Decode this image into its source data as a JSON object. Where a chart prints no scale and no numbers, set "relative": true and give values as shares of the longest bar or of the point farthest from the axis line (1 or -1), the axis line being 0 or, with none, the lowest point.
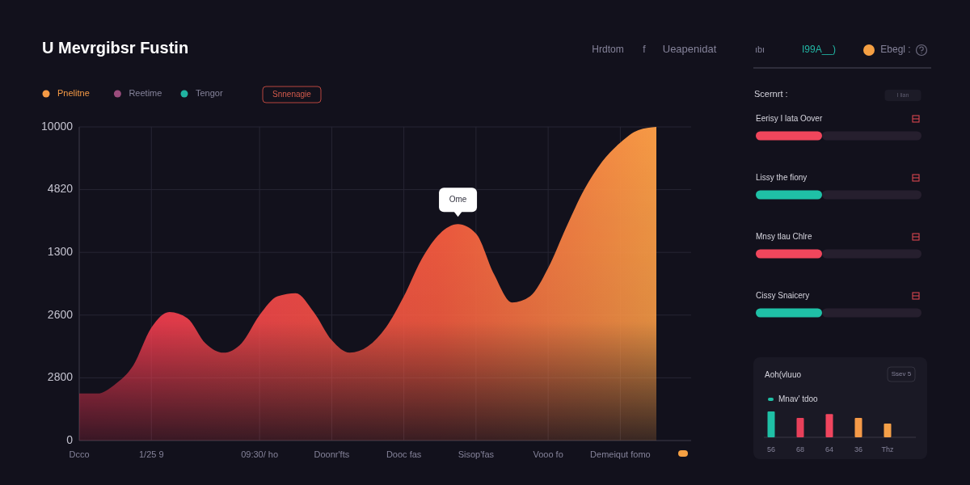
{
  "chart_data": [
    {
      "type": "area",
      "title": "U Mevrgibsr Fustin",
      "relative": true,
      "categories": [
        "Dcco",
        null,
        null,
        null,
        "1/25 9",
        null,
        null,
        null,
        null,
        null,
        "09:30/ ho",
        null,
        null,
        null,
        "Doonr'fts",
        null,
        null,
        null,
        "Dooc fas",
        null,
        null,
        null,
        "Sisop'fas",
        null,
        null,
        null,
        "Vooo fo",
        null,
        null,
        null,
        "Demeiqut fomo",
        null,
        null
      ],
      "series": [
        {
          "name": "Pnelitne",
          "color": "#f59a45",
          "values": [
            0.15,
            0.15,
            0.18,
            0.24,
            0.36,
            0.41,
            0.39,
            0.31,
            0.28,
            0.31,
            0.4,
            0.46,
            0.47,
            0.41,
            0.32,
            0.28,
            0.3,
            0.36,
            0.46,
            0.58,
            0.66,
            0.69,
            0.66,
            0.53,
            0.44,
            0.46,
            0.55,
            0.68,
            0.8,
            0.89,
            0.95,
            0.99,
            1
          ]
        },
        {
          "name": "Reetime",
          "color": "#9a4c7c",
          "values": [
            null,
            null,
            null,
            null,
            null,
            null,
            null,
            null,
            null,
            null,
            null,
            null,
            null,
            null,
            null,
            null,
            null,
            null,
            null,
            null,
            null,
            null,
            null,
            null,
            null,
            null,
            null,
            null,
            null,
            null,
            null,
            null,
            null
          ]
        },
        {
          "name": "Tengor",
          "color": "#20b3a0",
          "values": [
            null,
            null,
            null,
            null,
            null,
            null,
            null,
            null,
            null,
            null,
            null,
            null,
            null,
            null,
            null,
            null,
            null,
            null,
            null,
            null,
            null,
            null,
            null,
            null,
            null,
            null,
            null,
            null,
            null,
            null,
            null,
            null,
            null
          ]
        }
      ],
      "grid": true,
      "legend": "top left",
      "annotations": [
        {
          "text": "Ome",
          "y": 0.69
        },
        "Snnenagie",
        "Hrdtom",
        "f",
        "Ueapenidat",
        "ıbı",
        "I99A__)",
        "Ebegl :",
        "10000",
        "4820",
        "1300",
        "2600",
        "2800",
        "0"
      ]
    },
    {
      "type": "bar",
      "orientation": "horizontal",
      "stacked": true,
      "relative": true,
      "title": "Scernrt :",
      "categories": [
        "Eerisy I lata Oover",
        "Lissy the fiony",
        "Mnsy tlau Chlre",
        "Cissy Snaicery"
      ],
      "series": [
        {
          "colors": [
            "#f0465c",
            "#1fc0a6",
            "#f0465c",
            "#1fc0a6"
          ],
          "values": [
            0.4,
            0.4,
            0.4,
            0.4
          ]
        },
        {
          "color": "#261f2e",
          "values": [
            0.6,
            0.6,
            0.6,
            0.6
          ]
        }
      ],
      "annotations": [
        "I lian"
      ]
    },
    {
      "type": "bar",
      "relative": true,
      "title": "Aoh(vluuo",
      "categories": [
        "56",
        "68",
        "64",
        "36",
        "Thz"
      ],
      "series": [
        {
          "name": "Mnav' tdoo",
          "color": "#1fc0a6",
          "colors": [
            "#1fc0a6",
            "#e8405a",
            "#f0455e",
            "#f59a48",
            "#f5a048"
          ],
          "values": [
            1,
            0.75,
            0.9,
            0.75,
            0.53
          ]
        }
      ],
      "legend": "top left",
      "annotations": [
        "Ssev 5"
      ]
    }
  ]
}
